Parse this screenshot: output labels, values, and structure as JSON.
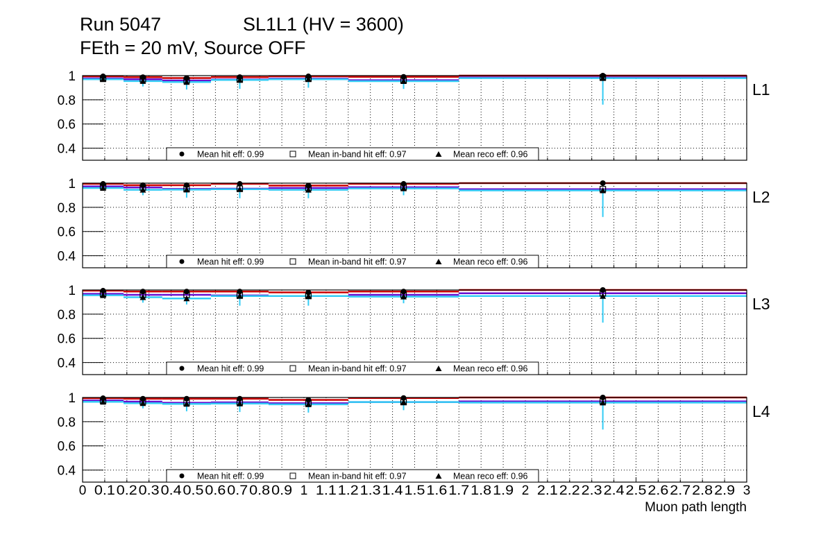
{
  "title": {
    "line1_left": "Run 5047",
    "line1_right": "SL1L1 (HV = 3600)",
    "line2": "FEth = 20 mV, Source OFF"
  },
  "colors": {
    "hit": "#cc0000",
    "inband": "#6a0fd0",
    "reco": "#33ccf5",
    "marker": "#000000"
  },
  "chart_data": {
    "type": "line",
    "xlabel": "Muon path length",
    "xlim": [
      0,
      3
    ],
    "ylim": [
      0.3,
      1.0
    ],
    "grid": true,
    "x_tick_labels": [
      "0",
      "0.1",
      "0.2",
      "0.3",
      "0.4",
      "0.5",
      "0.6",
      "0.7",
      "0.8",
      "0.9",
      "1",
      "1.1",
      "1.2",
      "1.3",
      "1.4",
      "1.5",
      "1.6",
      "1.7",
      "1.8",
      "1.9",
      "2",
      "2.1",
      "2.2",
      "2.3",
      "2.4",
      "2.5",
      "2.6",
      "2.7",
      "2.8",
      "2.9",
      "3"
    ],
    "y_tick_labels": [
      "1",
      "0.8",
      "0.6",
      "0.4"
    ],
    "y_ticks": [
      1.0,
      0.8,
      0.6,
      0.4
    ],
    "bin_edges": [
      0,
      0.185,
      0.36,
      0.58,
      0.84,
      1.2,
      1.7,
      3.0
    ],
    "legend": {
      "hit": "Mean hit  eff: 0.99",
      "inband": "Mean in-band hit eff: 0.97",
      "reco": "Mean reco eff: 0.96"
    },
    "panels": [
      {
        "label": "L1",
        "series": [
          {
            "name": "hit eff",
            "values": [
              0.994,
              0.987,
              0.98,
              0.988,
              0.994,
              0.99,
              1.0
            ]
          },
          {
            "name": "in-band hit eff",
            "values": [
              0.977,
              0.97,
              0.96,
              0.968,
              0.975,
              0.962,
              0.985
            ]
          },
          {
            "name": "reco eff",
            "values": [
              0.97,
              0.955,
              0.947,
              0.964,
              0.97,
              0.954,
              0.979
            ],
            "err_low": [
              0.95,
              0.91,
              0.885,
              0.89,
              0.9,
              0.89,
              0.76
            ]
          }
        ]
      },
      {
        "label": "L2",
        "series": [
          {
            "name": "hit eff",
            "values": [
              0.994,
              0.983,
              0.983,
              0.994,
              0.98,
              0.994,
              1.0
            ]
          },
          {
            "name": "in-band hit eff",
            "values": [
              0.973,
              0.964,
              0.952,
              0.954,
              0.96,
              0.966,
              0.95
            ]
          },
          {
            "name": "reco eff",
            "values": [
              0.96,
              0.945,
              0.946,
              0.95,
              0.945,
              0.956,
              0.94
            ],
            "err_low": [
              0.94,
              0.9,
              0.88,
              0.875,
              0.875,
              0.9,
              0.72
            ]
          }
        ]
      },
      {
        "label": "L3",
        "series": [
          {
            "name": "hit eff",
            "values": [
              0.994,
              0.987,
              0.987,
              0.987,
              0.98,
              0.987,
              1.0
            ]
          },
          {
            "name": "in-band hit eff",
            "values": [
              0.968,
              0.96,
              0.96,
              0.955,
              0.95,
              0.96,
              0.973
            ]
          },
          {
            "name": "reco eff",
            "values": [
              0.956,
              0.94,
              0.93,
              0.95,
              0.95,
              0.945,
              0.95
            ],
            "err_low": [
              0.94,
              0.895,
              0.88,
              0.87,
              0.87,
              0.89,
              0.73
            ]
          }
        ]
      },
      {
        "label": "L4",
        "series": [
          {
            "name": "hit eff",
            "values": [
              0.994,
              0.99,
              0.99,
              0.99,
              0.98,
              0.996,
              1.0
            ]
          },
          {
            "name": "in-band hit eff",
            "values": [
              0.975,
              0.966,
              0.956,
              0.96,
              0.953,
              0.962,
              0.968
            ]
          },
          {
            "name": "reco eff",
            "values": [
              0.964,
              0.953,
              0.947,
              0.95,
              0.943,
              0.962,
              0.958
            ],
            "err_low": [
              0.95,
              0.91,
              0.886,
              0.88,
              0.875,
              0.895,
              0.735
            ]
          }
        ]
      }
    ]
  }
}
